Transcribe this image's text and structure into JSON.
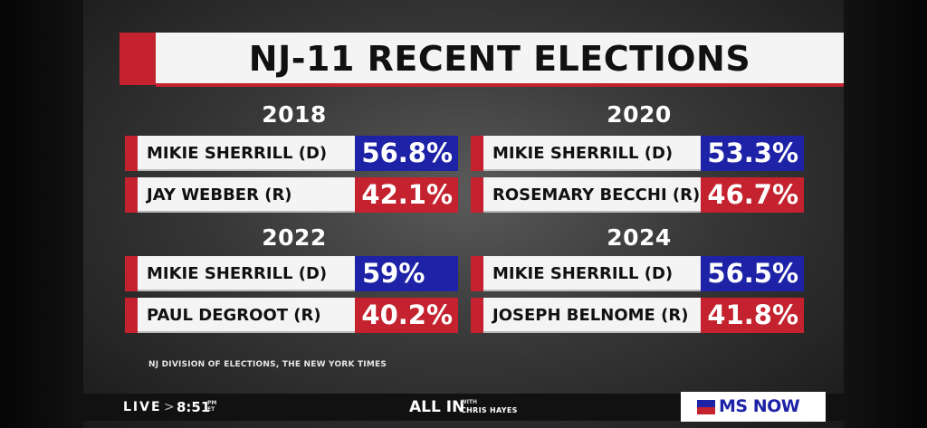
{
  "title": "NJ-11 RECENT ELECTIONS",
  "elections": [
    {
      "year": "2018",
      "candidates": [
        {
          "name": "MIKIE SHERRILL (D)",
          "pct": "56.8%",
          "party": "D"
        },
        {
          "name": "JAY WEBBER (R)",
          "pct": "42.1%",
          "party": "R"
        }
      ]
    },
    {
      "year": "2020",
      "candidates": [
        {
          "name": "MIKIE SHERRILL (D)",
          "pct": "53.3%",
          "party": "D"
        },
        {
          "name": "ROSEMARY BECCHI (R)",
          "pct": "46.7%",
          "party": "R"
        }
      ]
    },
    {
      "year": "2022",
      "candidates": [
        {
          "name": "MIKIE SHERRILL (D)",
          "pct": "59%",
          "party": "D"
        },
        {
          "name": "PAUL DEGROOT (R)",
          "pct": "40.2%",
          "party": "R"
        }
      ]
    },
    {
      "year": "2024",
      "candidates": [
        {
          "name": "MIKIE SHERRILL (D)",
          "pct": "56.5%",
          "party": "D"
        },
        {
          "name": "JOSEPH BELNOME (R)",
          "pct": "41.8%",
          "party": "R"
        }
      ]
    }
  ],
  "source": "NJ DIVISION OF ELECTIONS, THE NEW YORK TIMES",
  "ticker": {
    "live": "LIVE",
    "chevron": ">",
    "time": "8:51",
    "ampm": "PM",
    "tz": "ET",
    "show": "ALL IN",
    "show_with": "WITH",
    "host": "CHRIS HAYES"
  },
  "network": {
    "logo_text": "MS NOW"
  },
  "colors": {
    "democrat": "#1d22a6",
    "republican": "#c4222e",
    "panel": "#f4f4f4"
  }
}
